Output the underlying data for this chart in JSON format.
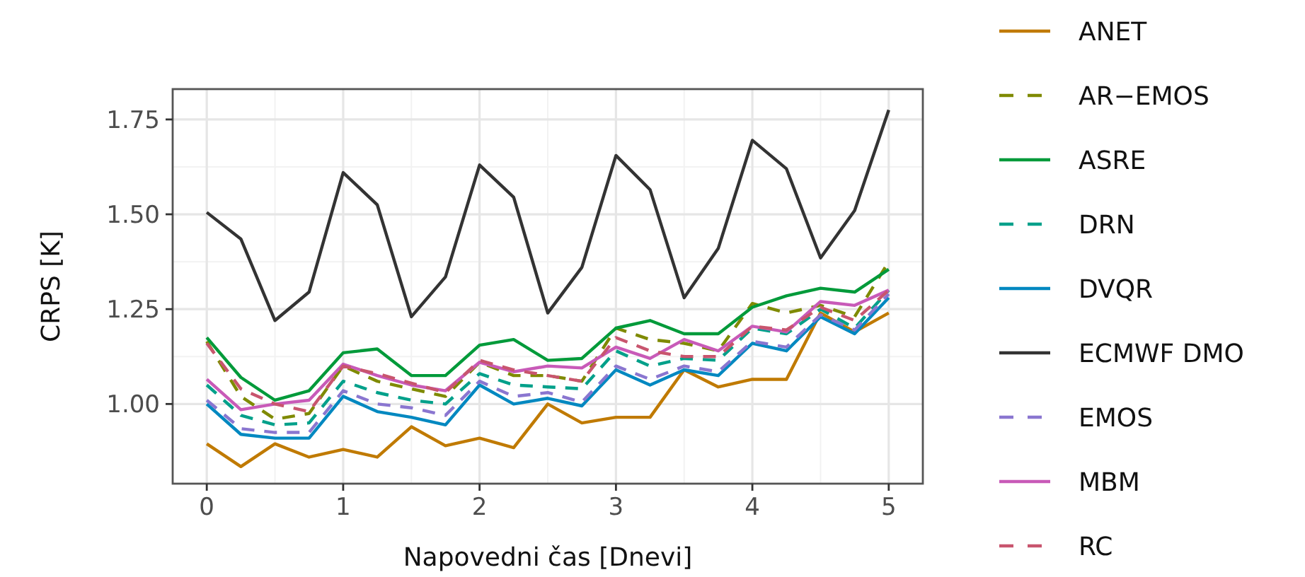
{
  "chart_data": {
    "type": "line",
    "xlabel": "Napovedni čas [Dnevi]",
    "ylabel": "CRPS [K]",
    "x": [
      0,
      0.25,
      0.5,
      0.75,
      1,
      1.25,
      1.5,
      1.75,
      2,
      2.25,
      2.5,
      2.75,
      3,
      3.25,
      3.5,
      3.75,
      4,
      4.25,
      4.5,
      4.75,
      5
    ],
    "xlim": [
      -0.25,
      5.25
    ],
    "xticks": [
      0,
      1,
      2,
      3,
      4,
      5
    ],
    "ylim": [
      0.79,
      1.83
    ],
    "yticks": [
      {
        "value": 1,
        "label": "1.00"
      },
      1.25,
      {
        "value": 1.5,
        "label": "1.50"
      },
      1.75
    ],
    "grid": true,
    "legend": "right",
    "series": [
      {
        "name": "ANET",
        "color": "#c07a00",
        "line_style": "solid",
        "values": [
          0.895,
          0.835,
          0.895,
          0.86,
          0.88,
          0.86,
          0.94,
          0.89,
          0.91,
          0.885,
          1.0,
          0.95,
          0.965,
          0.965,
          1.09,
          1.045,
          1.065,
          1.065,
          1.24,
          1.19,
          1.24
        ]
      },
      {
        "name": "AR−EMOS",
        "color": "#7f8a00",
        "line_style": "dashed",
        "values": [
          1.165,
          1.02,
          0.96,
          0.975,
          1.1,
          1.06,
          1.04,
          1.02,
          1.11,
          1.075,
          1.075,
          1.06,
          1.2,
          1.17,
          1.16,
          1.14,
          1.265,
          1.24,
          1.26,
          1.23,
          1.375
        ]
      },
      {
        "name": "ASRE",
        "color": "#009a3a",
        "line_style": "solid",
        "values": [
          1.175,
          1.07,
          1.01,
          1.035,
          1.135,
          1.145,
          1.075,
          1.075,
          1.155,
          1.17,
          1.115,
          1.12,
          1.2,
          1.22,
          1.185,
          1.185,
          1.255,
          1.285,
          1.305,
          1.295,
          1.355
        ]
      },
      {
        "name": "DRN",
        "color": "#00a08a",
        "line_style": "dashed",
        "values": [
          1.05,
          0.97,
          0.945,
          0.95,
          1.06,
          1.03,
          1.01,
          1.0,
          1.08,
          1.05,
          1.045,
          1.04,
          1.14,
          1.1,
          1.12,
          1.115,
          1.2,
          1.185,
          1.25,
          1.2,
          1.3
        ]
      },
      {
        "name": "DVQR",
        "color": "#0088c0",
        "line_style": "solid",
        "values": [
          1.0,
          0.92,
          0.91,
          0.91,
          1.02,
          0.98,
          0.965,
          0.945,
          1.05,
          1.0,
          1.015,
          0.995,
          1.09,
          1.05,
          1.09,
          1.075,
          1.16,
          1.14,
          1.23,
          1.185,
          1.28
        ]
      },
      {
        "name": "ECMWF DMO",
        "color": "#333333",
        "line_style": "solid",
        "values": [
          1.505,
          1.435,
          1.22,
          1.295,
          1.61,
          1.525,
          1.23,
          1.335,
          1.63,
          1.545,
          1.24,
          1.36,
          1.655,
          1.565,
          1.28,
          1.41,
          1.695,
          1.62,
          1.385,
          1.51,
          1.775
        ]
      },
      {
        "name": "EMOS",
        "color": "#8a76d0",
        "line_style": "dashed",
        "values": [
          1.01,
          0.935,
          0.925,
          0.925,
          1.035,
          1.0,
          0.99,
          0.97,
          1.06,
          1.02,
          1.03,
          1.005,
          1.1,
          1.065,
          1.1,
          1.085,
          1.165,
          1.15,
          1.235,
          1.195,
          1.29
        ]
      },
      {
        "name": "MBM",
        "color": "#c85ab8",
        "line_style": "solid",
        "values": [
          1.065,
          0.985,
          1.0,
          1.01,
          1.105,
          1.075,
          1.05,
          1.035,
          1.11,
          1.085,
          1.1,
          1.095,
          1.15,
          1.12,
          1.17,
          1.14,
          1.205,
          1.19,
          1.27,
          1.26,
          1.3
        ]
      },
      {
        "name": "RC",
        "color": "#c8556e",
        "line_style": "dashed",
        "values": [
          1.16,
          1.04,
          1.0,
          0.98,
          1.1,
          1.08,
          1.055,
          1.03,
          1.115,
          1.09,
          1.075,
          1.06,
          1.175,
          1.14,
          1.125,
          1.125,
          1.205,
          1.195,
          1.255,
          1.22,
          1.3
        ]
      }
    ]
  }
}
